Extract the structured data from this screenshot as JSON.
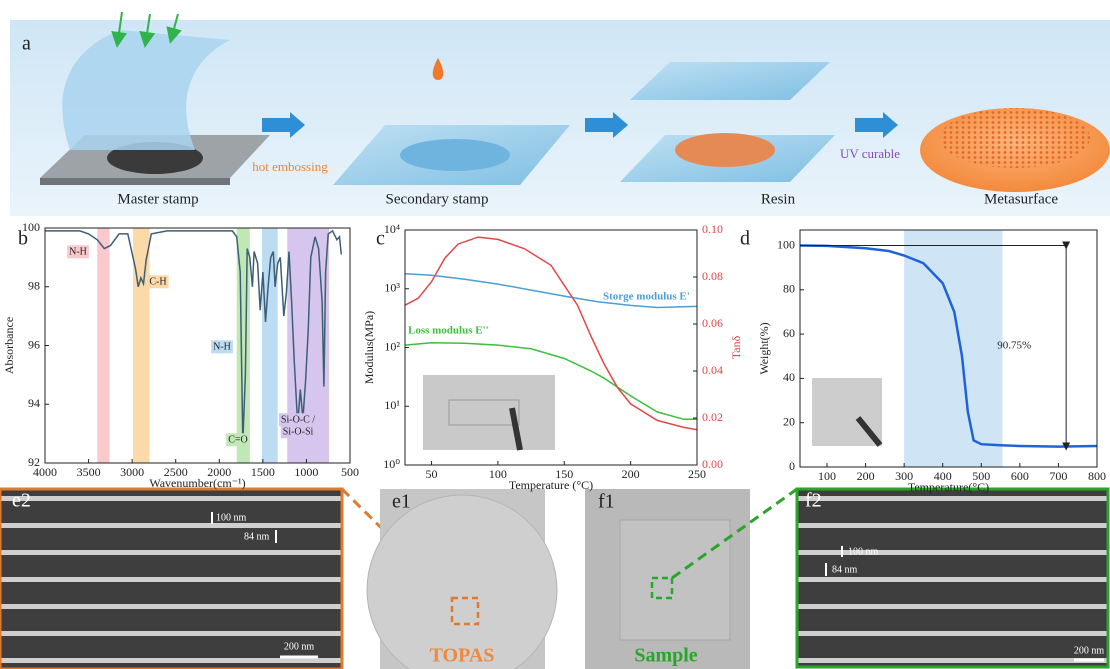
{
  "panel_a": {
    "label": "a",
    "steps": [
      "Master stamp",
      "Secondary stamp",
      "Resin",
      "Metasurface"
    ],
    "processes": [
      "hot embossing",
      "UV curable"
    ]
  },
  "chart_data": [
    {
      "type": "line",
      "label": "b",
      "xlabel": "Wavenumber(cm⁻¹)",
      "ylabel": "Absorbance",
      "xlim": [
        4000,
        500
      ],
      "ylim": [
        92,
        100
      ],
      "xticks": [
        4000,
        3500,
        3000,
        2500,
        2000,
        1500,
        1000,
        500
      ],
      "yticks": [
        92,
        94,
        96,
        98,
        100
      ],
      "bands": [
        {
          "label": "N-H",
          "from": 3400,
          "to": 3260,
          "color": "#f9c9cc"
        },
        {
          "label": "C-H",
          "from": 2990,
          "to": 2800,
          "color": "#fbd9a8"
        },
        {
          "label": "N-H",
          "from": 1510,
          "to": 1330,
          "color": "#bcdcf4"
        },
        {
          "label": "C=O",
          "from": 1800,
          "to": 1650,
          "color": "#bfe8b5"
        },
        {
          "label": [
            "Si-O-C /",
            "Si-O-Si"
          ],
          "from": 1220,
          "to": 740,
          "color": "#d6c5ec"
        }
      ],
      "series": [
        {
          "color": "#3d5f78",
          "x": [
            4000,
            3800,
            3600,
            3500,
            3400,
            3320,
            3250,
            3150,
            3050,
            2960,
            2930,
            2900,
            2870,
            2840,
            2780,
            2600,
            2400,
            2200,
            2000,
            1850,
            1800,
            1760,
            1730,
            1700,
            1680,
            1650,
            1620,
            1600,
            1560,
            1530,
            1500,
            1470,
            1440,
            1410,
            1380,
            1360,
            1330,
            1300,
            1260,
            1230,
            1200,
            1170,
            1140,
            1100,
            1070,
            1040,
            1010,
            980,
            950,
            900,
            860,
            820,
            800,
            780,
            750,
            700,
            650,
            620,
            600
          ],
          "values": [
            99.9,
            99.9,
            99.9,
            99.8,
            99.6,
            99.3,
            99.4,
            99.8,
            99.8,
            98.6,
            98.0,
            98.3,
            98.1,
            98.9,
            99.8,
            99.9,
            99.9,
            99.9,
            99.9,
            99.9,
            99.7,
            98.5,
            92.7,
            95.0,
            99.3,
            99.0,
            98.0,
            99.2,
            98.8,
            97.2,
            98.5,
            96.8,
            98.0,
            99.0,
            99.2,
            98.0,
            98.8,
            99.0,
            97.0,
            97.8,
            99.2,
            97.5,
            95.5,
            93.3,
            94.5,
            93.5,
            94.8,
            96.5,
            99.0,
            99.7,
            99.3,
            97.5,
            94.6,
            98.5,
            99.8,
            99.9,
            99.6,
            99.7,
            99.1
          ]
        }
      ]
    },
    {
      "type": "line",
      "label": "c",
      "xlabel": "Temperature (°C)",
      "ylabel": "Modulus(MPa)",
      "y2label": "Tanδ",
      "xlim": [
        30,
        250
      ],
      "ylim": [
        1,
        10000
      ],
      "ylog": true,
      "y2lim": [
        0,
        0.1
      ],
      "xticks": [
        50,
        100,
        150,
        200,
        250
      ],
      "yticks": [
        {
          "value": 1,
          "label": "10⁰"
        },
        {
          "value": 10,
          "label": "10¹"
        },
        {
          "value": 100,
          "label": "10²"
        },
        {
          "value": 1000,
          "label": "10³"
        },
        {
          "value": 10000,
          "label": "10⁴"
        }
      ],
      "y2ticks": [
        {
          "value": 0,
          "label": "0.00"
        },
        {
          "value": 0.02,
          "label": "0.02"
        },
        {
          "value": 0.04,
          "label": "0.04"
        },
        {
          "value": 0.06,
          "label": "0.06"
        },
        {
          "value": 0.08,
          "label": "0.08"
        },
        {
          "value": 0.1,
          "label": "0.10"
        }
      ],
      "series": [
        {
          "name": "Storge modulus E'",
          "color": "#4a9fd6",
          "x": [
            30,
            50,
            75,
            100,
            125,
            150,
            175,
            200,
            220,
            250
          ],
          "values": [
            1800,
            1700,
            1450,
            1200,
            950,
            750,
            600,
            520,
            480,
            500
          ]
        },
        {
          "name": "Loss modulus E''",
          "color": "#3cbf3c",
          "x": [
            30,
            50,
            75,
            100,
            125,
            150,
            170,
            180,
            200,
            220,
            240,
            250
          ],
          "values": [
            110,
            120,
            118,
            110,
            95,
            65,
            40,
            30,
            15,
            8,
            6,
            6
          ]
        },
        {
          "color": "#e04848",
          "axis": "y2",
          "x": [
            30,
            40,
            50,
            60,
            70,
            85,
            100,
            120,
            140,
            160,
            170,
            180,
            190,
            200,
            220,
            240,
            250
          ],
          "values": [
            0.068,
            0.071,
            0.078,
            0.088,
            0.094,
            0.097,
            0.096,
            0.092,
            0.085,
            0.068,
            0.055,
            0.043,
            0.033,
            0.026,
            0.019,
            0.016,
            0.015
          ]
        }
      ]
    },
    {
      "type": "line",
      "label": "d",
      "xlabel": "Temperature(°C)",
      "ylabel": "Weight(%)",
      "xlim": [
        30,
        800
      ],
      "ylim": [
        0,
        107
      ],
      "xticks": [
        100,
        200,
        300,
        400,
        500,
        600,
        700,
        800
      ],
      "yticks": [
        0,
        20,
        40,
        60,
        80,
        100
      ],
      "bands": [
        {
          "from": 300,
          "to": 555,
          "color": "#cfe5f6"
        }
      ],
      "annotation": {
        "text": "90.75%",
        "x": 720,
        "from": 100,
        "to": 9.25
      },
      "series": [
        {
          "color": "#2063d8",
          "x": [
            30,
            100,
            200,
            260,
            300,
            350,
            400,
            430,
            450,
            465,
            480,
            500,
            550,
            600,
            700,
            800
          ],
          "values": [
            100,
            99.8,
            98.8,
            97.5,
            95.5,
            92,
            83,
            70,
            50,
            25,
            12,
            10.3,
            9.8,
            9.5,
            9.2,
            9.5
          ]
        }
      ]
    }
  ],
  "images": {
    "e2": {
      "label": "e2",
      "marks": [
        "100 nm",
        "84 nm"
      ],
      "scale": "200 nm"
    },
    "e1": {
      "label": "e1",
      "material": "TOPAS"
    },
    "f1": {
      "label": "f1",
      "material": "Sample"
    },
    "f2": {
      "label": "f2",
      "marks": [
        "100 nm",
        "84 nm"
      ],
      "scale": "200 nm"
    }
  }
}
